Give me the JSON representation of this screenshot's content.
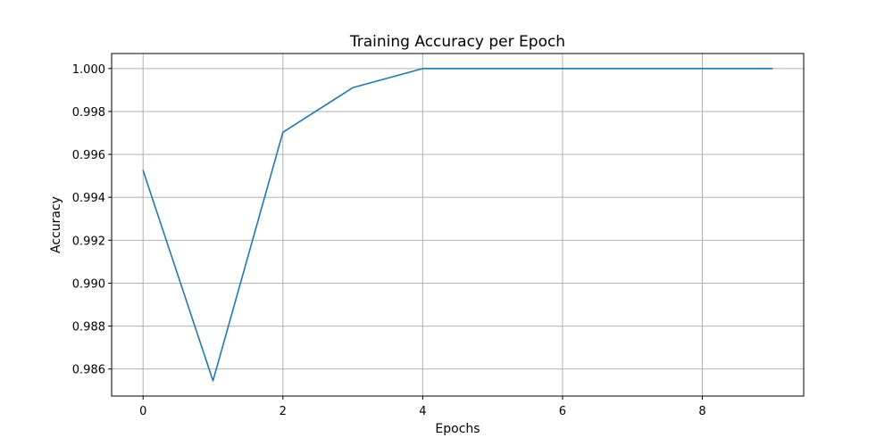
{
  "chart_data": {
    "type": "line",
    "title": "Training Accuracy per Epoch",
    "xlabel": "Epochs",
    "ylabel": "Accuracy",
    "x": [
      0,
      1,
      2,
      3,
      4,
      5,
      6,
      7,
      8,
      9
    ],
    "series": [
      {
        "values": [
          0.99525,
          0.98545,
          0.99703,
          0.99911,
          1.0,
          1.0,
          1.0,
          1.0,
          1.0,
          1.0
        ],
        "color": "#1f77b4"
      }
    ],
    "xlim": [
      -0.45,
      9.45
    ],
    "ylim": [
      0.98474,
      1.0007
    ],
    "xticks": [
      0,
      2,
      4,
      6,
      8
    ],
    "xtick_labels": [
      "0",
      "2",
      "4",
      "6",
      "8"
    ],
    "yticks": [
      0.986,
      0.988,
      0.99,
      0.992,
      0.994,
      0.996,
      0.998,
      1.0
    ],
    "ytick_labels": [
      "0.986",
      "0.988",
      "0.990",
      "0.992",
      "0.994",
      "0.996",
      "0.998",
      "1.000"
    ],
    "grid": true,
    "legend": false
  }
}
